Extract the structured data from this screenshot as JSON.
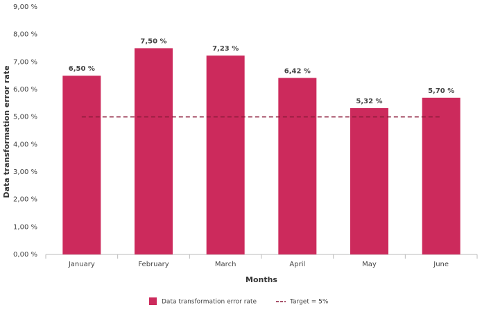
{
  "chart_data": {
    "type": "bar",
    "xlabel": "Months",
    "ylabel": "Data transformation error rate",
    "categories": [
      "January",
      "February",
      "March",
      "April",
      "May",
      "June"
    ],
    "series": [
      {
        "name": "Data transformation error rate",
        "color": "#cc2a5c",
        "values": [
          6.5,
          7.5,
          7.23,
          6.42,
          5.32,
          5.7
        ],
        "value_labels": [
          "6,50 %",
          "7,50 %",
          "7,23 %",
          "6,42 %",
          "5,32 %",
          "5,70 %"
        ]
      }
    ],
    "target": {
      "name": "Target = 5%",
      "value": 5,
      "color": "#8b1a3a"
    },
    "ylim": [
      0,
      9
    ],
    "yticks": [
      {
        "value": 0,
        "label": "0,00 %"
      },
      {
        "value": 1,
        "label": "1,00 %"
      },
      {
        "value": 2,
        "label": "2,00 %"
      },
      {
        "value": 3,
        "label": "3,00 %"
      },
      {
        "value": 4,
        "label": "4,00 %"
      },
      {
        "value": 5,
        "label": "5,00 %"
      },
      {
        "value": 6,
        "label": "6,00 %"
      },
      {
        "value": 7,
        "label": "7,00 %"
      },
      {
        "value": 8,
        "label": "8,00 %"
      },
      {
        "value": 9,
        "label": "9,00 %"
      }
    ],
    "grid": false,
    "legend": "bottom"
  }
}
